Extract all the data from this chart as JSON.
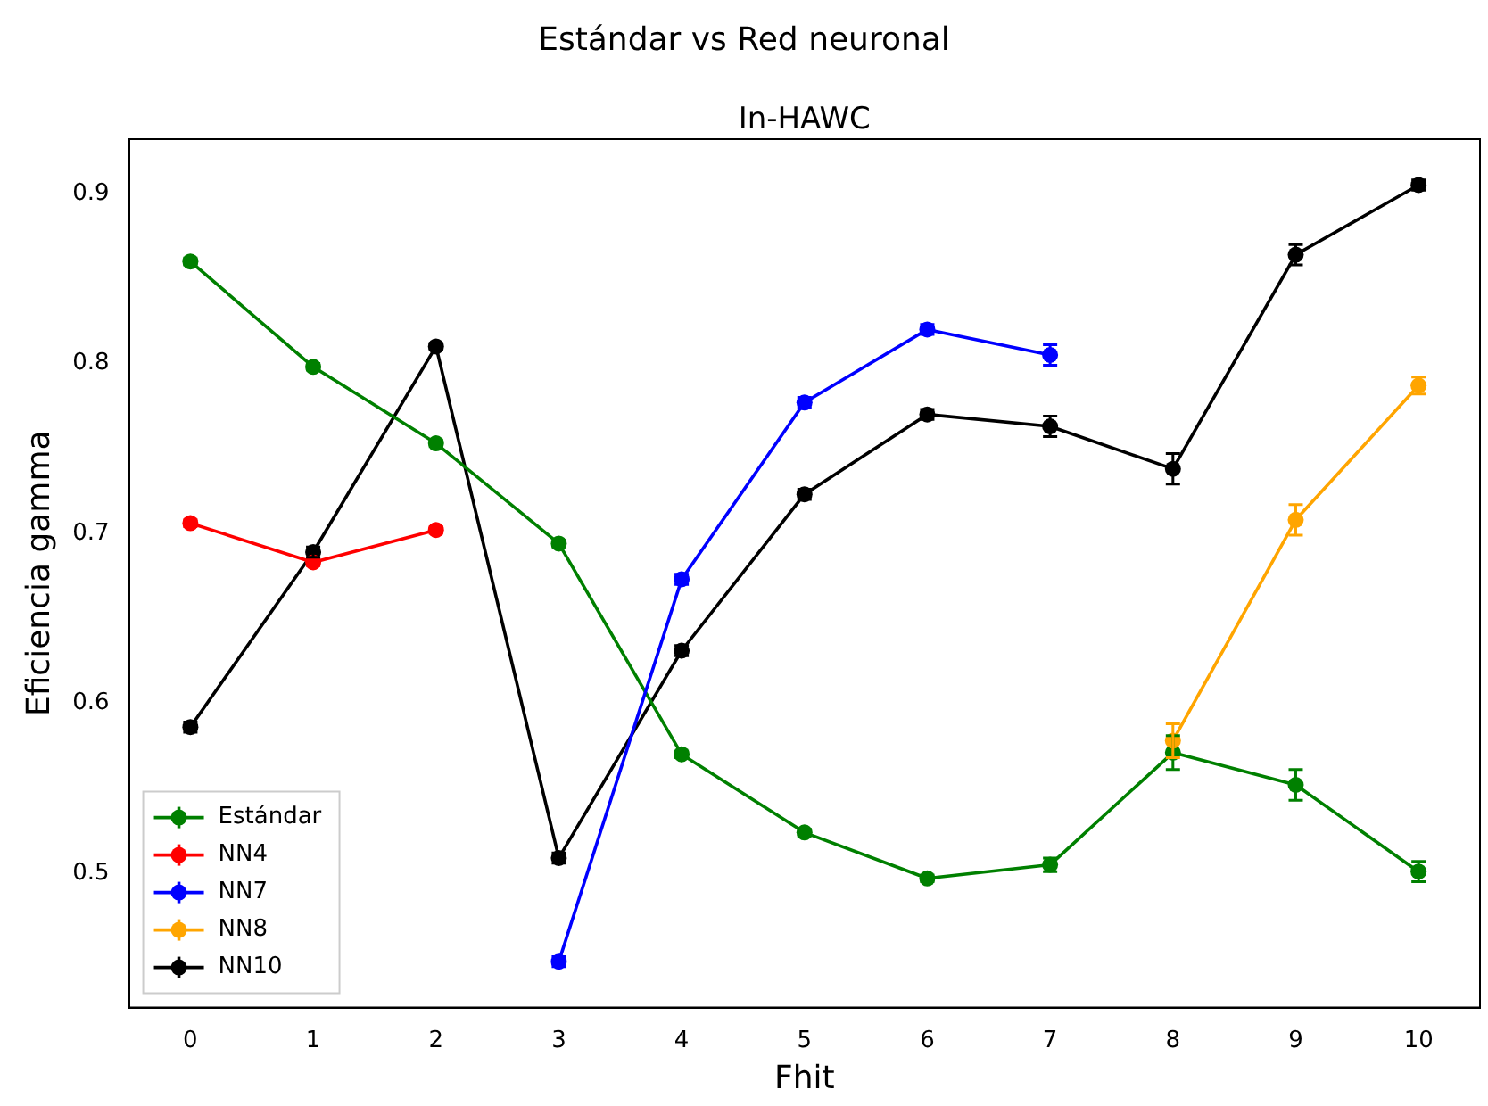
{
  "chart_data": {
    "type": "line",
    "title": "Estándar vs Red neuronal",
    "subtitle": "In-HAWC",
    "xlabel": "Fhit",
    "ylabel": "Eficiencia gamma",
    "xlim": [
      -0.5,
      10.5
    ],
    "xticks": [
      0,
      1,
      2,
      3,
      4,
      5,
      6,
      7,
      8,
      9,
      10
    ],
    "ylim": [
      0.421,
      0.932
    ],
    "yticks": [
      0.5,
      0.6,
      0.7,
      0.8,
      0.9
    ],
    "grid": false,
    "legend": "bottom left",
    "marker": "circle",
    "line_style": "solid",
    "series": [
      {
        "name": "Estándar",
        "color": "#008000",
        "x": [
          0,
          1,
          2,
          3,
          4,
          5,
          6,
          7,
          8,
          9,
          10
        ],
        "values": [
          0.86,
          0.798,
          0.753,
          0.694,
          0.57,
          0.524,
          0.497,
          0.505,
          0.571,
          0.552,
          0.501
        ],
        "errors": [
          0.002,
          0.002,
          0.002,
          0.002,
          0.002,
          0.002,
          0.002,
          0.004,
          0.01,
          0.009,
          0.006
        ]
      },
      {
        "name": "NN4",
        "color": "#ff0000",
        "x": [
          0,
          1,
          2
        ],
        "values": [
          0.706,
          0.683,
          0.702
        ],
        "errors": [
          0.002,
          0.002,
          0.002
        ]
      },
      {
        "name": "NN7",
        "color": "#0000ff",
        "x": [
          3,
          4,
          5,
          6,
          7
        ],
        "values": [
          0.448,
          0.673,
          0.777,
          0.82,
          0.805
        ],
        "errors": [
          0.003,
          0.003,
          0.003,
          0.003,
          0.006
        ]
      },
      {
        "name": "NN8",
        "color": "#ffa500",
        "x": [
          8,
          9,
          10
        ],
        "values": [
          0.578,
          0.708,
          0.787
        ],
        "errors": [
          0.01,
          0.009,
          0.005
        ]
      },
      {
        "name": "NN10",
        "color": "#000000",
        "x": [
          0,
          1,
          2,
          3,
          4,
          5,
          6,
          7,
          8,
          9,
          10
        ],
        "values": [
          0.586,
          0.689,
          0.81,
          0.509,
          0.631,
          0.723,
          0.77,
          0.763,
          0.738,
          0.864,
          0.905
        ],
        "errors": [
          0.003,
          0.003,
          0.002,
          0.003,
          0.003,
          0.003,
          0.003,
          0.006,
          0.009,
          0.006,
          0.003
        ]
      }
    ]
  }
}
